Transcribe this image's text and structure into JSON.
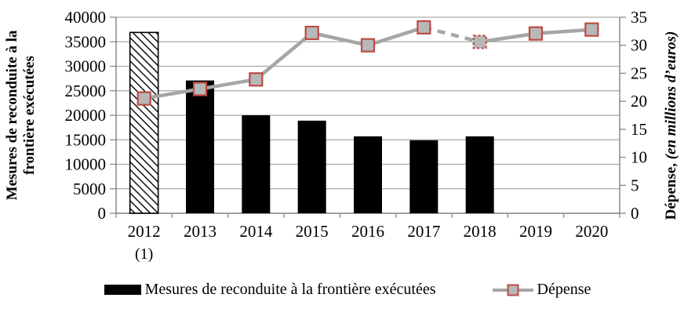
{
  "chart_data": {
    "type": "combo",
    "title": "",
    "categories": [
      "2012",
      "2013",
      "2014",
      "2015",
      "2016",
      "2017",
      "2018",
      "2019",
      "2020"
    ],
    "category_note": {
      "category": "2012",
      "text": "(1)"
    },
    "left_axis": {
      "title": "Mesures de reconduite à la frontière exécutées",
      "min": 0,
      "max": 40000,
      "tick_step": 5000,
      "ticks": [
        "40000",
        "35000",
        "30000",
        "25000",
        "20000",
        "15000",
        "10000",
        "5000",
        "0"
      ]
    },
    "right_axis": {
      "title_bold": "Dépense,",
      "title_italic": " (en millions d’euros)",
      "min": 0,
      "max": 35,
      "tick_step": 5,
      "ticks": [
        "35",
        "30",
        "25",
        "20",
        "15",
        "10",
        "5",
        "0"
      ]
    },
    "series": [
      {
        "name": "Mesures de reconduite à la frontière exécutées",
        "type": "bar",
        "axis": "left",
        "values": [
          36900,
          27100,
          20000,
          18900,
          15700,
          14900,
          15700,
          null,
          null
        ],
        "hatched_categories": [
          "2012"
        ]
      },
      {
        "name": "Dépense",
        "type": "line",
        "axis": "right",
        "values": [
          20.5,
          22.2,
          23.9,
          32.2,
          30.0,
          33.2,
          30.6,
          32.1,
          32.8
        ],
        "dashed_segment_after_category": "2017",
        "dashed_marker_category": "2018"
      }
    ],
    "grid": "horizontal",
    "legend_position": "bottom"
  },
  "colors": {
    "bar": "#000000",
    "line": "#a6a6a6",
    "marker_fill": "#b8b8b8",
    "marker_border": "#bd4b45",
    "gridline": "#a9a9a9",
    "axis": "#808080",
    "text": "#000000"
  }
}
